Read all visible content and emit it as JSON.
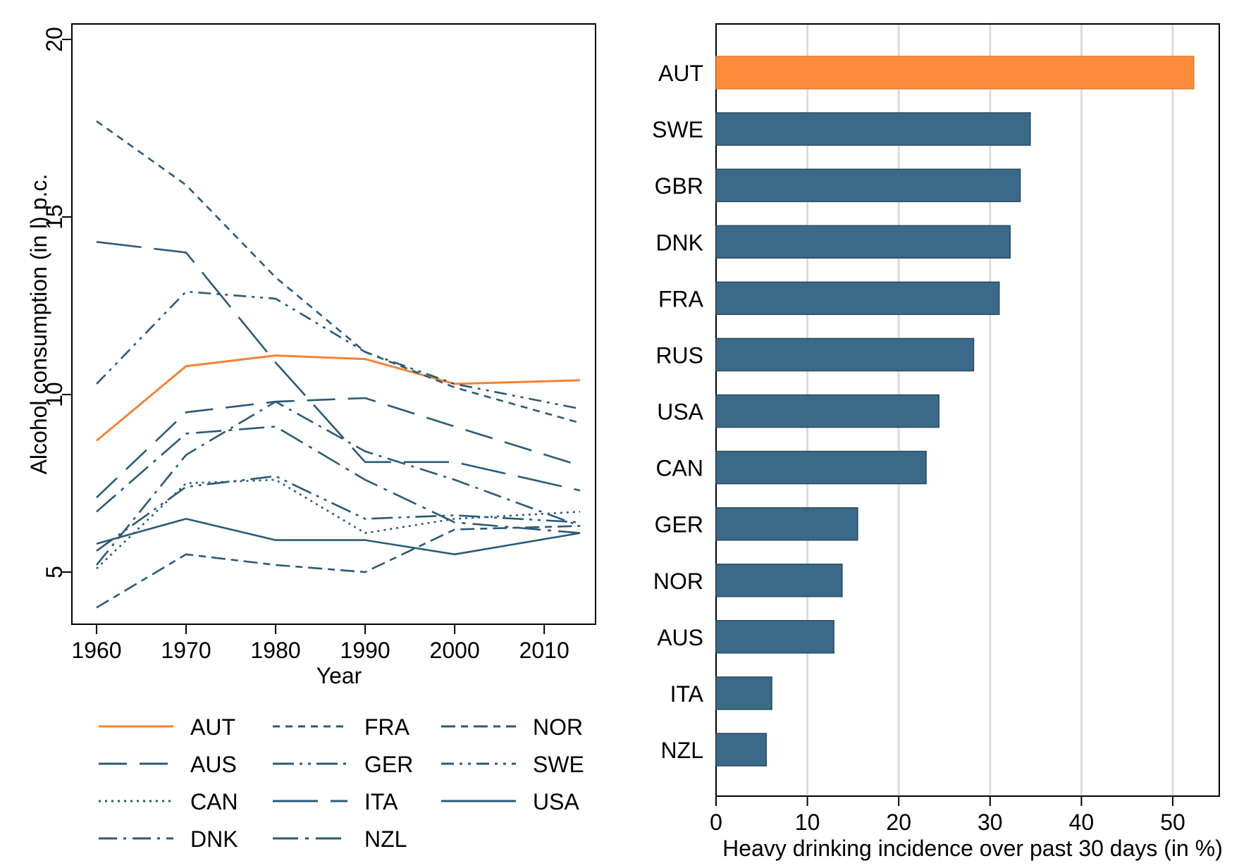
{
  "charts": [
    {
      "type": "line",
      "title": "",
      "xlabel": "Year",
      "ylabel": "Alcohol consumption (in l) p.c.",
      "xlim": [
        1960,
        2014
      ],
      "ylim": [
        4,
        20.5
      ],
      "xticks": [
        1960,
        1970,
        1980,
        1990,
        2000,
        2010
      ],
      "yticks": [
        5,
        10,
        15,
        20
      ],
      "grid": false,
      "legend_position": "bottom",
      "x": [
        1960,
        1970,
        1980,
        1990,
        2000,
        2014
      ],
      "series": [
        {
          "name": "AUT",
          "values": [
            8.7,
            10.8,
            11.1,
            11.0,
            10.3,
            10.4
          ],
          "color": "#f58231",
          "dash": "solid"
        },
        {
          "name": "AUS",
          "values": [
            7.1,
            9.5,
            9.8,
            9.9,
            9.1,
            8.0
          ],
          "color": "#2a5a78",
          "dash": "long-dash"
        },
        {
          "name": "CAN",
          "values": [
            5.1,
            7.5,
            7.6,
            6.1,
            6.5,
            6.7
          ],
          "color": "#2a5a78",
          "dash": "dot"
        },
        {
          "name": "DNK",
          "values": [
            5.2,
            8.3,
            9.8,
            8.4,
            7.6,
            6.3
          ],
          "color": "#2a5a78",
          "dash": "dash-dot"
        },
        {
          "name": "FRA",
          "values": [
            17.7,
            15.9,
            13.3,
            11.2,
            10.2,
            9.2
          ],
          "color": "#2a5a78",
          "dash": "short-dash"
        },
        {
          "name": "GER",
          "values": [
            5.6,
            7.4,
            7.7,
            6.5,
            6.6,
            6.4
          ],
          "color": "#2a5a78",
          "dash": "long-dash-dot-dot"
        },
        {
          "name": "ITA",
          "values": [
            14.3,
            14.0,
            10.9,
            8.1,
            8.1,
            7.3
          ],
          "color": "#2a5a78",
          "dash": "very-long-dash"
        },
        {
          "name": "NZL",
          "values": [
            6.7,
            8.9,
            9.1,
            7.6,
            6.4,
            6.1
          ],
          "color": "#2a5a78",
          "dash": "long-dash-dot"
        },
        {
          "name": "NOR",
          "values": [
            4.0,
            5.5,
            5.2,
            5.0,
            6.2,
            6.3
          ],
          "color": "#2a5a78",
          "dash": "dash-short"
        },
        {
          "name": "SWE",
          "values": [
            10.3,
            12.9,
            12.7,
            11.2,
            10.3,
            9.6
          ],
          "color": "#2a5a78",
          "dash": "dash-dot-dot"
        },
        {
          "name": "USA",
          "values": [
            5.8,
            6.5,
            5.9,
            5.9,
            5.5,
            6.1
          ],
          "color": "#2a5a78",
          "dash": "solid"
        }
      ],
      "legend_order": [
        "AUT",
        "AUS",
        "CAN",
        "DNK",
        "FRA",
        "GER",
        "ITA",
        "NZL",
        "NOR",
        "SWE",
        "USA"
      ]
    },
    {
      "type": "bar",
      "orientation": "horizontal",
      "title": "",
      "xlabel": "Heavy drinking incidence over past 30 days (in %)",
      "ylabel": "",
      "xlim": [
        0,
        55
      ],
      "xticks": [
        0,
        10,
        20,
        30,
        40,
        50
      ],
      "grid": true,
      "categories": [
        "AUT",
        "SWE",
        "GBR",
        "DNK",
        "FRA",
        "RUS",
        "USA",
        "CAN",
        "GER",
        "NOR",
        "AUS",
        "ITA",
        "NZL"
      ],
      "values": [
        52.3,
        34.4,
        33.3,
        32.2,
        31.0,
        28.2,
        24.4,
        23.0,
        15.5,
        13.8,
        12.9,
        6.1,
        5.5
      ],
      "colors": {
        "highlight": "#ff8c3a",
        "default": "#3b6a88",
        "edge": "#2a4b62"
      }
    }
  ]
}
